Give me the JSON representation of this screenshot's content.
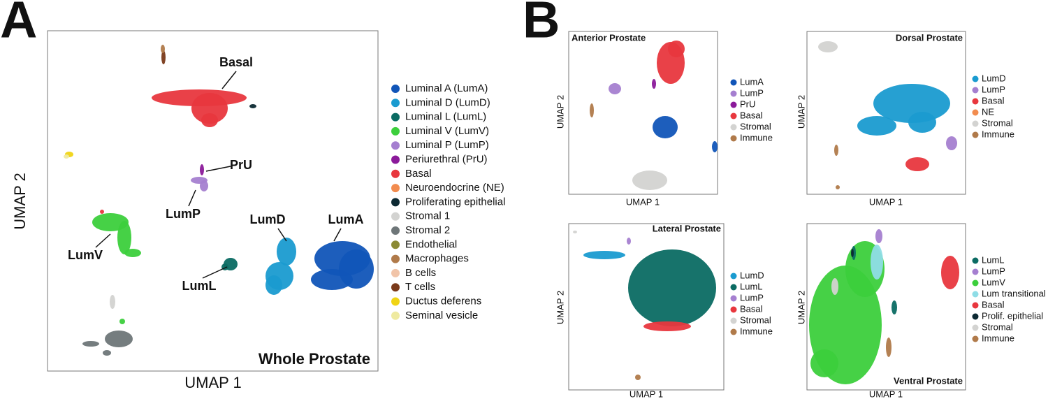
{
  "panel_a": {
    "letter": "A",
    "title": "Whole Prostate",
    "xlabel": "UMAP 1",
    "ylabel": "UMAP 2",
    "legend": [
      {
        "label": "Luminal A (LumA)",
        "color": "#1155b8"
      },
      {
        "label": "Luminal D (LumD)",
        "color": "#1a9bd0"
      },
      {
        "label": "Luminal L (LumL)",
        "color": "#0b6b63"
      },
      {
        "label": "Luminal V (LumV)",
        "color": "#3ccf3c"
      },
      {
        "label": "Luminal P (LumP)",
        "color": "#a57fd0"
      },
      {
        "label": "Periurethral (PrU)",
        "color": "#8b1a9a"
      },
      {
        "label": "Basal",
        "color": "#e8373e"
      },
      {
        "label": "Neuroendocrine (NE)",
        "color": "#f28c4f"
      },
      {
        "label": "Proliferating epithelial",
        "color": "#0d2a33"
      },
      {
        "label": "Stromal 1",
        "color": "#d3d3d1"
      },
      {
        "label": "Stromal 2",
        "color": "#6e7678"
      },
      {
        "label": "Endothelial",
        "color": "#8b8a34"
      },
      {
        "label": "Macrophages",
        "color": "#b07a4a"
      },
      {
        "label": "B cells",
        "color": "#f1c4a8"
      },
      {
        "label": "T cells",
        "color": "#7a3a1a"
      },
      {
        "label": "Ductus deferens",
        "color": "#f0d414"
      },
      {
        "label": "Seminal vesicle",
        "color": "#efeaa0"
      }
    ],
    "annotations": [
      "Basal",
      "PrU",
      "LumP",
      "LumV",
      "LumL",
      "LumD",
      "LumA"
    ]
  },
  "panel_b": {
    "letter": "B",
    "subpanels": [
      {
        "title": "Anterior Prostate",
        "xlabel": "UMAP 1",
        "ylabel": "UMAP 2",
        "legend": [
          {
            "label": "LumA",
            "color": "#1155b8"
          },
          {
            "label": "LumP",
            "color": "#a57fd0"
          },
          {
            "label": "PrU",
            "color": "#8b1a9a"
          },
          {
            "label": "Basal",
            "color": "#e8373e"
          },
          {
            "label": "Stromal",
            "color": "#d3d3d1"
          },
          {
            "label": "Immune",
            "color": "#b07a4a"
          }
        ]
      },
      {
        "title": "Dorsal Prostate",
        "xlabel": "UMAP 1",
        "ylabel": "UMAP 2",
        "legend": [
          {
            "label": "LumD",
            "color": "#1a9bd0"
          },
          {
            "label": "LumP",
            "color": "#a57fd0"
          },
          {
            "label": "Basal",
            "color": "#e8373e"
          },
          {
            "label": "NE",
            "color": "#f28c4f"
          },
          {
            "label": "Stromal",
            "color": "#d3d3d1"
          },
          {
            "label": "Immune",
            "color": "#b07a4a"
          }
        ]
      },
      {
        "title": "Lateral Prostate",
        "xlabel": "UMAP 1",
        "ylabel": "UMAP 2",
        "legend": [
          {
            "label": "LumD",
            "color": "#1a9bd0"
          },
          {
            "label": "LumL",
            "color": "#0b6b63"
          },
          {
            "label": "LumP",
            "color": "#a57fd0"
          },
          {
            "label": "Basal",
            "color": "#e8373e"
          },
          {
            "label": "Stromal",
            "color": "#d3d3d1"
          },
          {
            "label": "Immune",
            "color": "#b07a4a"
          }
        ]
      },
      {
        "title": "Ventral Prostate",
        "xlabel": "UMAP 1",
        "ylabel": "UMAP 2",
        "legend": [
          {
            "label": "LumL",
            "color": "#0b6b63"
          },
          {
            "label": "LumP",
            "color": "#a57fd0"
          },
          {
            "label": "LumV",
            "color": "#3ccf3c"
          },
          {
            "label": "Lum transitional",
            "color": "#8fdde6"
          },
          {
            "label": "Basal",
            "color": "#e8373e"
          },
          {
            "label": "Prolif. epithelial",
            "color": "#0d2a33"
          },
          {
            "label": "Stromal",
            "color": "#d3d3d1"
          },
          {
            "label": "Immune",
            "color": "#b07a4a"
          }
        ]
      }
    ]
  }
}
